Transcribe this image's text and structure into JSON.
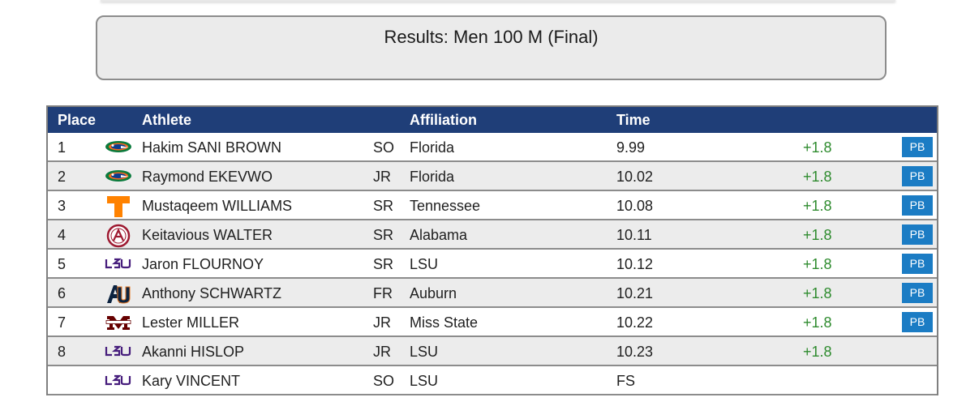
{
  "title": "Results: Men 100 M (Final)",
  "colors": {
    "header_bg": "#1f3e78",
    "row_alt": "#ececec",
    "wind": "#2e8b2e",
    "pb_badge": "#1b7cc4"
  },
  "table": {
    "headers": {
      "place": "Place",
      "athlete": "Athlete",
      "affiliation": "Affiliation",
      "time": "Time"
    },
    "rows": [
      {
        "place": "1",
        "logo": "florida-gator-logo",
        "athlete": "Hakim SANI BROWN",
        "year": "SO",
        "affiliation": "Florida",
        "time": "9.99",
        "wind": "+1.8",
        "badge": "PB"
      },
      {
        "place": "2",
        "logo": "florida-gator-logo",
        "athlete": "Raymond EKEVWO",
        "year": "JR",
        "affiliation": "Florida",
        "time": "10.02",
        "wind": "+1.8",
        "badge": "PB"
      },
      {
        "place": "3",
        "logo": "tennessee-t-logo",
        "athlete": "Mustaqeem WILLIAMS",
        "year": "SR",
        "affiliation": "Tennessee",
        "time": "10.08",
        "wind": "+1.8",
        "badge": "PB"
      },
      {
        "place": "4",
        "logo": "alabama-a-logo",
        "athlete": "Keitavious WALTER",
        "year": "SR",
        "affiliation": "Alabama",
        "time": "10.11",
        "wind": "+1.8",
        "badge": "PB"
      },
      {
        "place": "5",
        "logo": "lsu-logo",
        "athlete": "Jaron FLOURNOY",
        "year": "SR",
        "affiliation": "LSU",
        "time": "10.12",
        "wind": "+1.8",
        "badge": "PB"
      },
      {
        "place": "6",
        "logo": "auburn-au-logo",
        "athlete": "Anthony SCHWARTZ",
        "year": "FR",
        "affiliation": "Auburn",
        "time": "10.21",
        "wind": "+1.8",
        "badge": "PB"
      },
      {
        "place": "7",
        "logo": "miss-state-m-logo",
        "athlete": "Lester MILLER",
        "year": "JR",
        "affiliation": "Miss State",
        "time": "10.22",
        "wind": "+1.8",
        "badge": "PB"
      },
      {
        "place": "8",
        "logo": "lsu-logo",
        "athlete": "Akanni HISLOP",
        "year": "JR",
        "affiliation": "LSU",
        "time": "10.23",
        "wind": "+1.8",
        "badge": ""
      },
      {
        "place": "",
        "logo": "lsu-logo",
        "athlete": "Kary VINCENT",
        "year": "SO",
        "affiliation": "LSU",
        "time": "FS",
        "wind": "",
        "badge": ""
      }
    ]
  }
}
